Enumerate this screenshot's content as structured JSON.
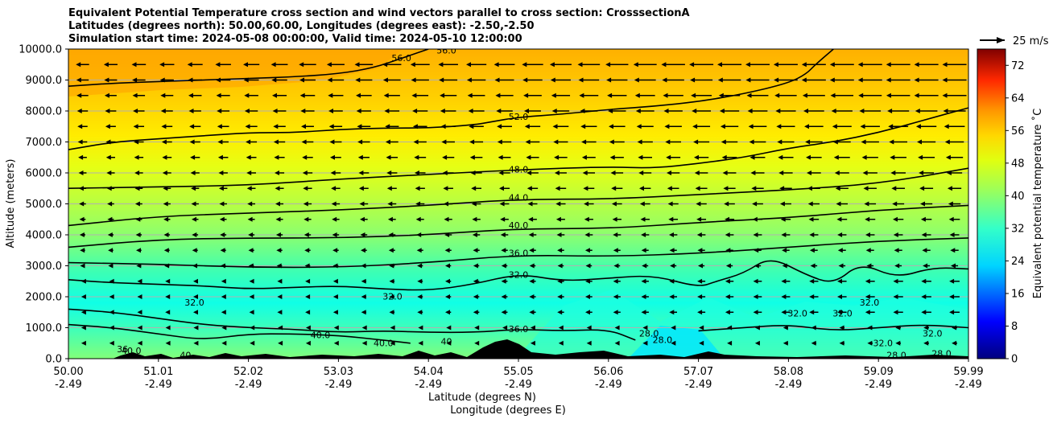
{
  "chart_data": {
    "type": "heatmap",
    "title_lines": [
      "Equivalent Potential Temperature cross section and wind vectors parallel to cross section: CrosssectionA",
      "Latitudes (degrees north): 50.00,60.00, Longitudes (degrees east): -2.50,-2.50",
      "Simulation start time: 2024-05-08 00:00:00, Valid time: 2024-05-10 12:00:00"
    ],
    "ylabel": "Altitude (meters)",
    "xlabel_lat": "Latitude (degrees N)",
    "xlabel_lon": "Longitude (degrees E)",
    "ylim": [
      0,
      10000
    ],
    "yticks": [
      "0.0",
      "1000.0",
      "2000.0",
      "3000.0",
      "4000.0",
      "5000.0",
      "6000.0",
      "7000.0",
      "8000.0",
      "9000.0",
      "10000.0"
    ],
    "yticks_values": [
      0,
      1000,
      2000,
      3000,
      4000,
      5000,
      6000,
      7000,
      8000,
      9000,
      10000
    ],
    "xticks_lat": [
      "50.00",
      "51.01",
      "52.02",
      "53.03",
      "54.04",
      "55.05",
      "56.06",
      "57.07",
      "58.08",
      "59.09",
      "59.99"
    ],
    "xticks_lon": [
      "-2.49",
      "-2.49",
      "-2.49",
      "-2.49",
      "-2.49",
      "-2.49",
      "-2.49",
      "-2.49",
      "-2.49",
      "-2.49",
      "-2.49"
    ],
    "colorbar": {
      "label": "Equivalent potential temperature ˚C",
      "range": [
        0,
        76
      ],
      "ticks": [
        "0",
        "8",
        "16",
        "24",
        "32",
        "40",
        "48",
        "56",
        "64",
        "72"
      ],
      "tick_values": [
        0,
        8,
        16,
        24,
        32,
        40,
        48,
        56,
        64,
        72
      ]
    },
    "wind_key": {
      "label": "25 m/s",
      "speed": 25
    },
    "contour_levels": [
      28,
      32,
      36,
      40,
      44,
      48,
      52,
      56
    ],
    "contour_labels": [
      {
        "text": "56.0",
        "frac": 0.37,
        "h": 9700
      },
      {
        "text": "56.0",
        "frac": 0.42,
        "h": 9950
      },
      {
        "text": "52.0",
        "frac": 0.5,
        "h": 7800
      },
      {
        "text": "48.0",
        "frac": 0.5,
        "h": 6100
      },
      {
        "text": "44.0",
        "frac": 0.5,
        "h": 5200
      },
      {
        "text": "40.0",
        "frac": 0.5,
        "h": 4300
      },
      {
        "text": "36.0",
        "frac": 0.5,
        "h": 3400
      },
      {
        "text": "32.0",
        "frac": 0.5,
        "h": 2700
      },
      {
        "text": "36.0",
        "frac": 0.5,
        "h": 950
      },
      {
        "text": "32.0",
        "frac": 0.36,
        "h": 2000
      },
      {
        "text": "32.0",
        "frac": 0.14,
        "h": 1800
      },
      {
        "text": "40.0",
        "frac": 0.28,
        "h": 750
      },
      {
        "text": "40.0",
        "frac": 0.35,
        "h": 500
      },
      {
        "text": "40.0",
        "frac": 0.07,
        "h": 250
      },
      {
        "text": "36",
        "frac": 0.06,
        "h": 300
      },
      {
        "text": "40",
        "frac": 0.13,
        "h": 100
      },
      {
        "text": "40",
        "frac": 0.42,
        "h": 550
      },
      {
        "text": "28.0",
        "frac": 0.645,
        "h": 800
      },
      {
        "text": "28.0",
        "frac": 0.66,
        "h": 600
      },
      {
        "text": "32.0",
        "frac": 0.81,
        "h": 1450
      },
      {
        "text": "32.0",
        "frac": 0.86,
        "h": 1450
      },
      {
        "text": "32.0",
        "frac": 0.89,
        "h": 1800
      },
      {
        "text": "32.0",
        "frac": 0.905,
        "h": 500
      },
      {
        "text": "32.0",
        "frac": 0.96,
        "h": 800
      },
      {
        "text": "28.0",
        "frac": 0.92,
        "h": 100
      },
      {
        "text": "28.0",
        "frac": 0.97,
        "h": 150
      }
    ],
    "isolines": [
      {
        "level": 56,
        "points": [
          [
            0,
            8800
          ],
          [
            0.05,
            8900
          ],
          [
            0.1,
            8950
          ],
          [
            0.15,
            9000
          ],
          [
            0.2,
            9050
          ],
          [
            0.25,
            9100
          ],
          [
            0.3,
            9200
          ],
          [
            0.34,
            9400
          ],
          [
            0.37,
            9700
          ],
          [
            0.4,
            10000
          ]
        ]
      },
      {
        "level": 52,
        "points": [
          [
            0,
            6750
          ],
          [
            0.05,
            7000
          ],
          [
            0.1,
            7100
          ],
          [
            0.15,
            7200
          ],
          [
            0.2,
            7300
          ],
          [
            0.25,
            7300
          ],
          [
            0.3,
            7400
          ],
          [
            0.35,
            7450
          ],
          [
            0.4,
            7450
          ],
          [
            0.45,
            7550
          ],
          [
            0.47,
            7650
          ],
          [
            0.5,
            7800
          ],
          [
            0.55,
            7900
          ],
          [
            0.6,
            8050
          ],
          [
            0.65,
            8150
          ],
          [
            0.7,
            8300
          ],
          [
            0.75,
            8550
          ],
          [
            0.8,
            8900
          ],
          [
            0.82,
            9200
          ],
          [
            0.83,
            9500
          ],
          [
            0.85,
            10000
          ]
        ]
      },
      {
        "level": 48,
        "points": [
          [
            0,
            5500
          ],
          [
            0.1,
            5550
          ],
          [
            0.2,
            5600
          ],
          [
            0.3,
            5800
          ],
          [
            0.4,
            5950
          ],
          [
            0.5,
            6100
          ],
          [
            0.6,
            6200
          ],
          [
            0.65,
            6150
          ],
          [
            0.7,
            6300
          ],
          [
            0.75,
            6500
          ],
          [
            0.8,
            6800
          ],
          [
            0.85,
            7000
          ],
          [
            0.9,
            7300
          ],
          [
            0.95,
            7700
          ],
          [
            1.0,
            8100
          ]
        ]
      },
      {
        "level": 44,
        "points": [
          [
            0,
            4300
          ],
          [
            0.1,
            4600
          ],
          [
            0.2,
            4700
          ],
          [
            0.3,
            4800
          ],
          [
            0.4,
            4950
          ],
          [
            0.5,
            5150
          ],
          [
            0.6,
            5150
          ],
          [
            0.7,
            5300
          ],
          [
            0.8,
            5450
          ],
          [
            0.9,
            5650
          ],
          [
            1.0,
            6150
          ]
        ]
      },
      {
        "level": 40,
        "points": [
          [
            0,
            3600
          ],
          [
            0.1,
            3850
          ],
          [
            0.2,
            3900
          ],
          [
            0.3,
            3900
          ],
          [
            0.4,
            4000
          ],
          [
            0.5,
            4200
          ],
          [
            0.6,
            4200
          ],
          [
            0.7,
            4400
          ],
          [
            0.8,
            4550
          ],
          [
            0.9,
            4800
          ],
          [
            1.0,
            4950
          ]
        ]
      },
      {
        "level": 36,
        "points": [
          [
            0,
            3100
          ],
          [
            0.1,
            3050
          ],
          [
            0.2,
            2950
          ],
          [
            0.3,
            2950
          ],
          [
            0.4,
            3100
          ],
          [
            0.5,
            3350
          ],
          [
            0.6,
            3300
          ],
          [
            0.7,
            3400
          ],
          [
            0.8,
            3600
          ],
          [
            0.9,
            3800
          ],
          [
            1.0,
            3900
          ]
        ]
      },
      {
        "level": 32,
        "points": [
          [
            0,
            2550
          ],
          [
            0.05,
            2450
          ],
          [
            0.1,
            2400
          ],
          [
            0.15,
            2350
          ],
          [
            0.2,
            2250
          ],
          [
            0.25,
            2300
          ],
          [
            0.3,
            2350
          ],
          [
            0.35,
            2250
          ],
          [
            0.4,
            2200
          ],
          [
            0.45,
            2400
          ],
          [
            0.5,
            2750
          ],
          [
            0.55,
            2500
          ],
          [
            0.6,
            2600
          ],
          [
            0.65,
            2700
          ],
          [
            0.7,
            2300
          ],
          [
            0.72,
            2500
          ],
          [
            0.75,
            2750
          ],
          [
            0.78,
            3300
          ],
          [
            0.82,
            2700
          ],
          [
            0.85,
            2400
          ],
          [
            0.88,
            3100
          ],
          [
            0.92,
            2600
          ],
          [
            0.96,
            2950
          ],
          [
            1.0,
            2900
          ]
        ]
      },
      {
        "level": 36,
        "points": [
          [
            0,
            1600
          ],
          [
            0.05,
            1500
          ],
          [
            0.1,
            1300
          ],
          [
            0.15,
            1100
          ],
          [
            0.2,
            1000
          ],
          [
            0.25,
            950
          ],
          [
            0.3,
            850
          ],
          [
            0.35,
            900
          ],
          [
            0.4,
            850
          ],
          [
            0.45,
            850
          ],
          [
            0.5,
            950
          ],
          [
            0.55,
            900
          ],
          [
            0.6,
            950
          ],
          [
            0.63,
            600
          ]
        ]
      },
      {
        "level": 40,
        "points": [
          [
            0,
            1100
          ],
          [
            0.05,
            1000
          ],
          [
            0.1,
            800
          ],
          [
            0.15,
            600
          ],
          [
            0.2,
            800
          ],
          [
            0.25,
            800
          ],
          [
            0.3,
            750
          ],
          [
            0.35,
            600
          ],
          [
            0.38,
            500
          ]
        ]
      },
      {
        "level": 28,
        "points": [
          [
            0.7,
            900
          ],
          [
            0.75,
            1000
          ],
          [
            0.8,
            1100
          ],
          [
            0.85,
            900
          ],
          [
            0.9,
            1000
          ],
          [
            0.95,
            1100
          ],
          [
            1.0,
            1000
          ]
        ]
      }
    ],
    "wind_rows_m": [
      9500,
      9000,
      8500,
      8000,
      7500,
      7000,
      6500,
      6000,
      5500,
      5000,
      4500,
      4000,
      3500,
      3000,
      2500,
      2000,
      1500,
      1000,
      500
    ],
    "wind_columns": 32
  }
}
